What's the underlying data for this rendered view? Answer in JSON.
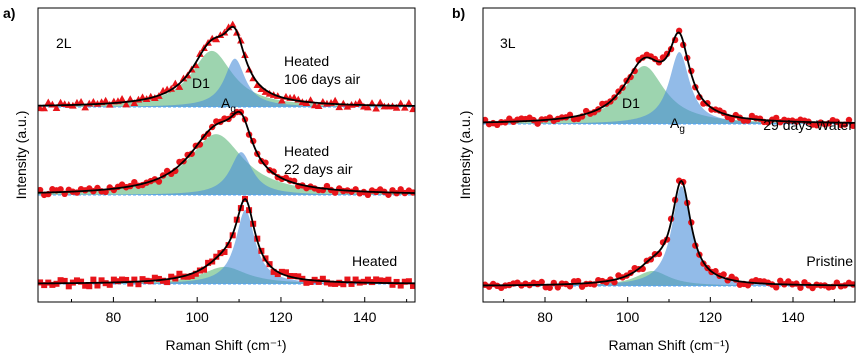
{
  "colors": {
    "d1_fill": "#5cb87a",
    "ag_fill": "#4a8ed8",
    "marker": "#e8141a",
    "fit_line": "#000000",
    "baseline": "#4da3ff",
    "d1_label": "#3aa85a",
    "ag_label": "#2f6fc8"
  },
  "chart_data": [
    {
      "type": "scatter",
      "panel_label": "a)",
      "xlabel": "Raman Shift (cm⁻¹)",
      "ylabel": "Intensity (a.u.)",
      "xlim": [
        62,
        152
      ],
      "xticks": [
        "80",
        "100",
        "120",
        "140"
      ],
      "xtick_values": [
        80,
        100,
        120,
        140
      ],
      "layer_label": "2L",
      "traces": [
        {
          "label_lines": [
            "Heated",
            "106 days air"
          ],
          "marker": "triangle",
          "components": [
            {
              "name": "D1",
              "center": 103.5,
              "width": 6.0,
              "amplitude": 0.72,
              "label": "D1"
            },
            {
              "name": "Ag",
              "center": 109.0,
              "width": 3.0,
              "amplitude": 0.62,
              "label": "A",
              "label_sub": "g"
            }
          ]
        },
        {
          "label_lines": [
            "Heated",
            "22 days air"
          ],
          "marker": "circle",
          "components": [
            {
              "name": "D1",
              "center": 104.5,
              "width": 8.0,
              "amplitude": 0.78
            },
            {
              "name": "Ag",
              "center": 110.5,
              "width": 3.2,
              "amplitude": 0.55
            }
          ]
        },
        {
          "label_lines": [
            "Heated"
          ],
          "marker": "square",
          "components": [
            {
              "name": "D1",
              "center": 106.5,
              "width": 6.5,
              "amplitude": 0.22
            },
            {
              "name": "Ag",
              "center": 111.5,
              "width": 2.8,
              "amplitude": 0.95
            }
          ]
        }
      ]
    },
    {
      "type": "scatter",
      "panel_label": "b)",
      "xlabel": "Raman Shift (cm⁻¹)",
      "ylabel": "Intensity (a.u.)",
      "xlim": [
        65,
        155
      ],
      "xticks": [
        "80",
        "100",
        "120",
        "140"
      ],
      "xtick_values": [
        80,
        100,
        120,
        140
      ],
      "layer_label": "3L",
      "traces": [
        {
          "label_lines": [
            "29 days Water"
          ],
          "marker": "circle",
          "components": [
            {
              "name": "D1",
              "center": 104.0,
              "width": 6.0,
              "amplitude": 0.58,
              "label": "D1"
            },
            {
              "name": "Ag",
              "center": 112.5,
              "width": 3.0,
              "amplitude": 0.72,
              "label": "A",
              "label_sub": "g"
            }
          ]
        },
        {
          "label_lines": [
            "Pristine"
          ],
          "marker": "circle",
          "components": [
            {
              "name": "D1",
              "center": 106.0,
              "width": 5.0,
              "amplitude": 0.15
            },
            {
              "name": "Ag",
              "center": 113.0,
              "width": 2.8,
              "amplitude": 1.0
            }
          ]
        }
      ]
    }
  ]
}
